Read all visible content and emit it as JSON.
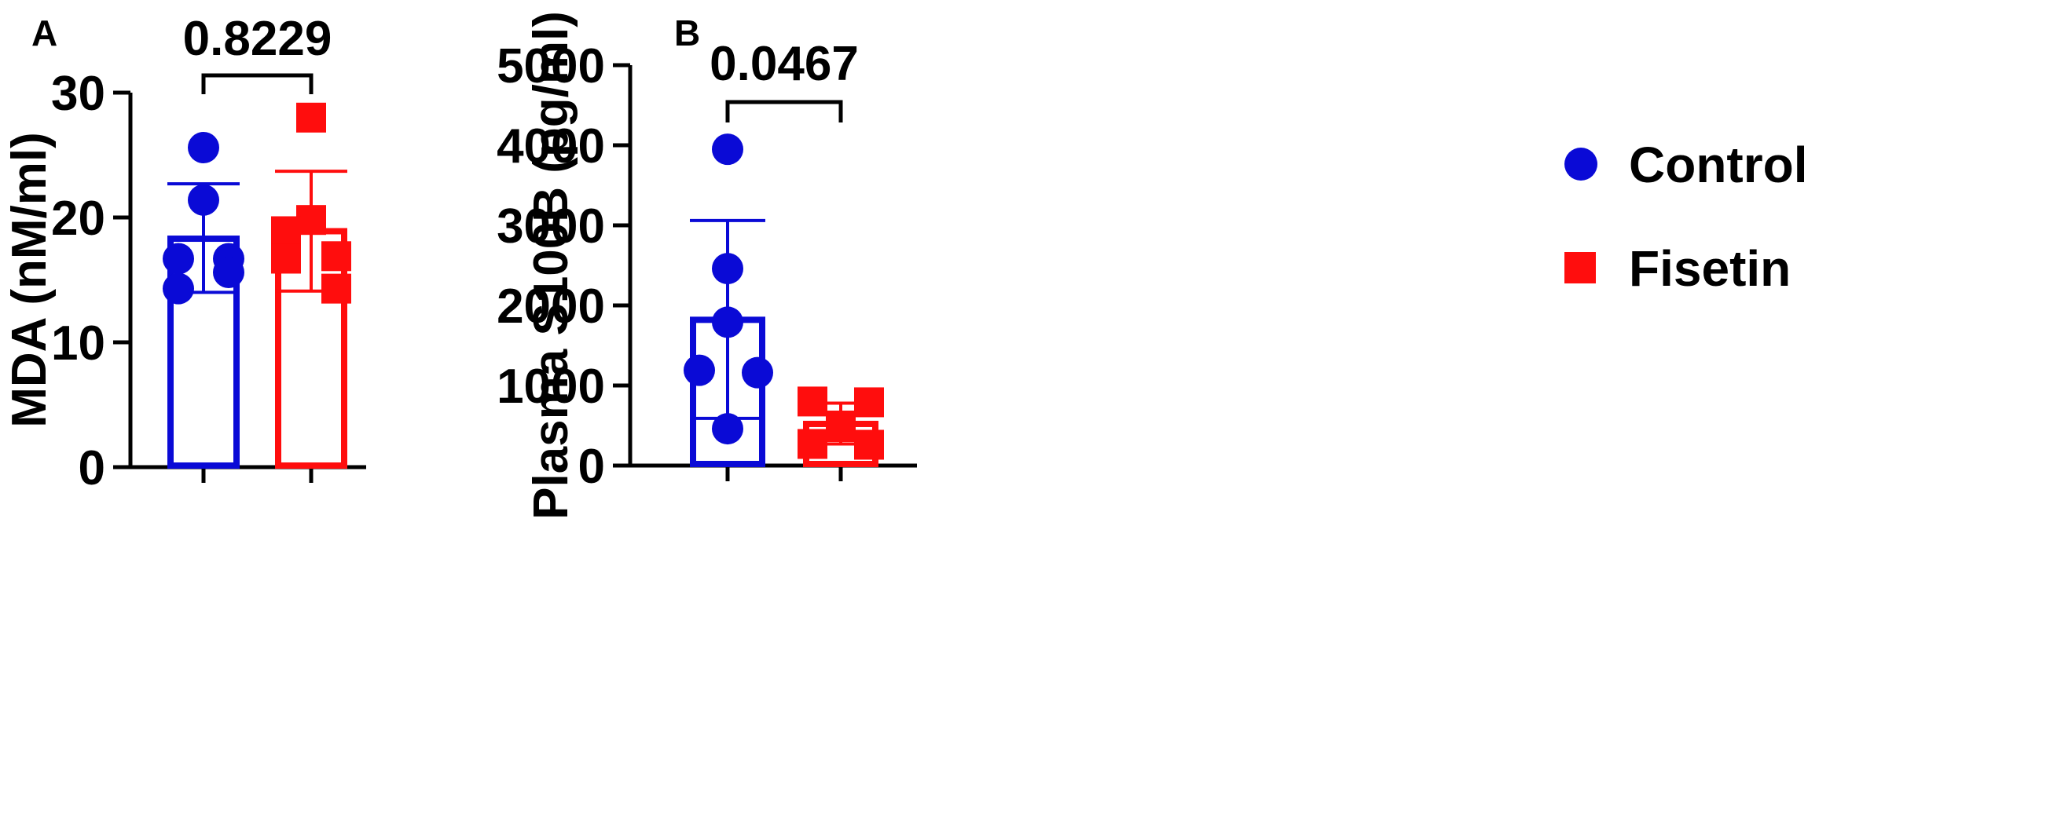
{
  "colors": {
    "control": "#0a0ad6",
    "fisetin": "#ff0d0d"
  },
  "legend": [
    {
      "label": "Control",
      "marker": "circle",
      "color": "#0a0ad6"
    },
    {
      "label": "Fisetin",
      "marker": "square",
      "color": "#ff0d0d"
    }
  ],
  "chart_data": [
    {
      "panel": "A",
      "type": "bar",
      "categories": [
        "Control",
        "Fisetin"
      ],
      "ylabel": "MDA (nM/ml)",
      "ylim": [
        0,
        30
      ],
      "yticks": [
        0,
        10,
        20,
        30
      ],
      "series": [
        {
          "name": "Control",
          "mean": 18.3,
          "sd_low": 14.0,
          "sd_high": 22.7,
          "points": [
            25.6,
            21.4,
            16.7,
            16.7,
            14.3,
            15.6
          ]
        },
        {
          "name": "Fisetin",
          "mean": 18.9,
          "sd_low": 14.1,
          "sd_high": 23.7,
          "points": [
            28.0,
            19.8,
            18.9,
            16.9,
            16.7,
            14.3
          ]
        }
      ],
      "comparison": {
        "label": "0.8229"
      }
    },
    {
      "panel": "B",
      "type": "bar",
      "categories": [
        "Control",
        "Fisetin"
      ],
      "ylabel": "Plasma S100B (pg/ml)",
      "ylim": [
        0,
        5000
      ],
      "yticks": [
        0,
        1000,
        2000,
        3000,
        4000,
        5000
      ],
      "series": [
        {
          "name": "Control",
          "mean": 1820,
          "sd_low": 590,
          "sd_high": 3060,
          "points": [
            3950,
            2460,
            1790,
            1190,
            1160,
            460
          ]
        },
        {
          "name": "Fisetin",
          "mean": 520,
          "sd_low": 270,
          "sd_high": 780,
          "points": [
            800,
            790,
            500,
            480,
            270,
            260
          ]
        }
      ],
      "comparison": {
        "label": "0.0467"
      }
    }
  ]
}
